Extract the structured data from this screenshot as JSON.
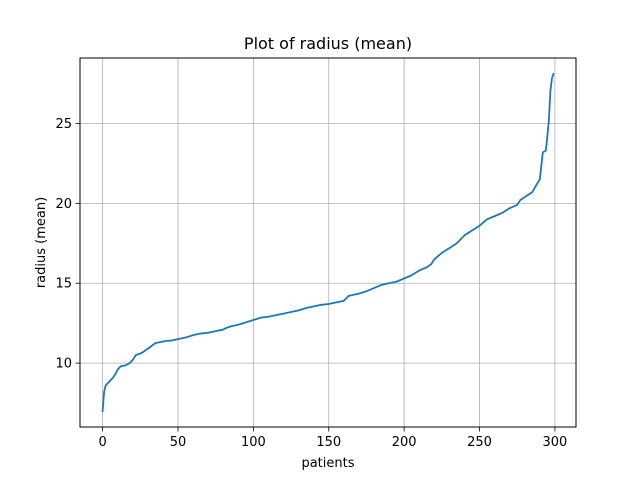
{
  "chart_data": {
    "type": "line",
    "title": "Plot of radius (mean)",
    "xlabel": "patients",
    "ylabel": "radius (mean)",
    "xlim": [
      -15,
      314
    ],
    "ylim": [
      6.0,
      29.1
    ],
    "xticks": [
      0,
      50,
      100,
      150,
      200,
      250,
      300
    ],
    "yticks": [
      10,
      15,
      20,
      25
    ],
    "grid": true,
    "legend": "none",
    "series": [
      {
        "color": "#1f77b4",
        "x": [
          0,
          1,
          2,
          3,
          5,
          7,
          9,
          10,
          12,
          15,
          18,
          20,
          22,
          25,
          27,
          30,
          35,
          40,
          43,
          45,
          50,
          55,
          60,
          65,
          70,
          75,
          80,
          82,
          85,
          90,
          95,
          100,
          105,
          110,
          115,
          120,
          125,
          130,
          135,
          140,
          145,
          150,
          155,
          160,
          163,
          165,
          170,
          175,
          180,
          185,
          190,
          195,
          200,
          205,
          210,
          215,
          218,
          220,
          225,
          230,
          235,
          240,
          245,
          250,
          255,
          260,
          265,
          270,
          275,
          277,
          280,
          285,
          288,
          290,
          292,
          294,
          295,
          296,
          297,
          298,
          299
        ],
        "y": [
          7.0,
          8.2,
          8.6,
          8.7,
          8.9,
          9.1,
          9.4,
          9.6,
          9.8,
          9.85,
          10.0,
          10.2,
          10.5,
          10.6,
          10.7,
          10.9,
          11.25,
          11.35,
          11.4,
          11.4,
          11.5,
          11.6,
          11.75,
          11.85,
          11.9,
          12.0,
          12.1,
          12.2,
          12.3,
          12.4,
          12.55,
          12.7,
          12.85,
          12.9,
          13.0,
          13.1,
          13.2,
          13.3,
          13.45,
          13.55,
          13.65,
          13.7,
          13.8,
          13.9,
          14.2,
          14.25,
          14.35,
          14.5,
          14.7,
          14.9,
          15.0,
          15.1,
          15.3,
          15.5,
          15.8,
          16.0,
          16.2,
          16.5,
          16.9,
          17.2,
          17.5,
          18.0,
          18.3,
          18.6,
          19.0,
          19.2,
          19.4,
          19.7,
          19.9,
          20.2,
          20.4,
          20.7,
          21.2,
          21.5,
          23.2,
          23.3,
          24.2,
          25.2,
          27.0,
          27.8,
          28.1
        ]
      }
    ]
  }
}
